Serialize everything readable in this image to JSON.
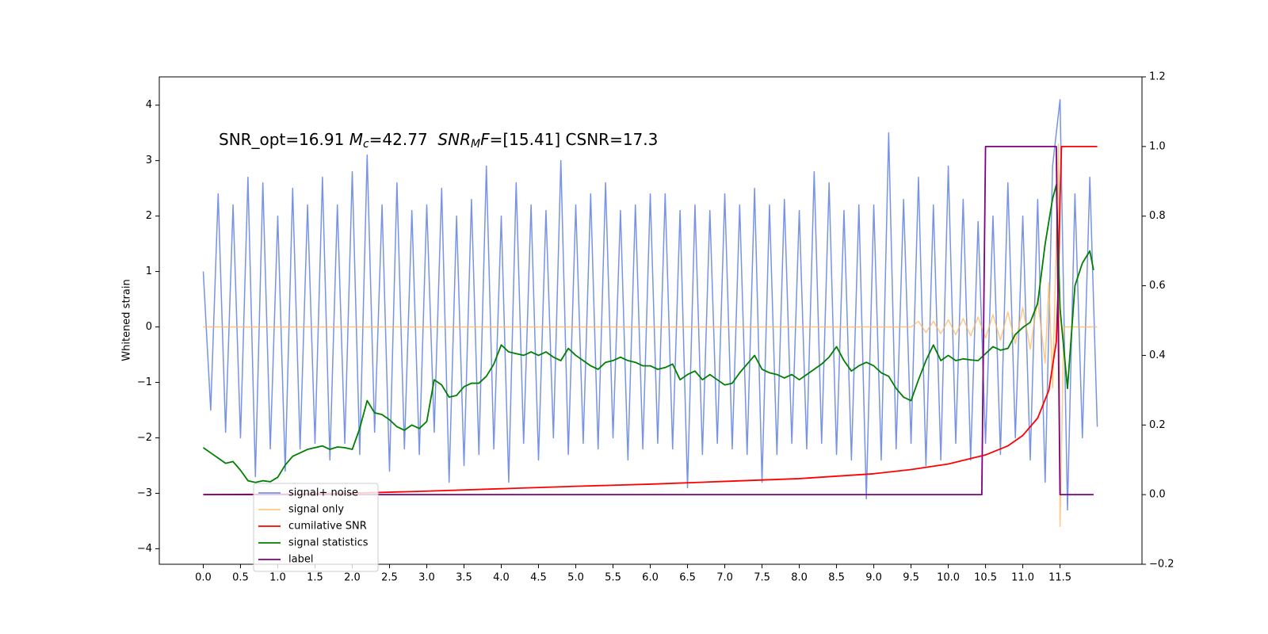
{
  "chart_data": {
    "type": "line",
    "annotation": [
      {
        "text": "SNR_opt=16.91 "
      },
      {
        "text": "M",
        "style": "italic"
      },
      {
        "text": "c",
        "style": "italic-sub"
      },
      {
        "text": "=42.77  "
      },
      {
        "text": "SNR",
        "style": "italic"
      },
      {
        "text": "M",
        "style": "italic-sub"
      },
      {
        "text": "F",
        "style": "italic"
      },
      {
        "text": "=[15.41] CSNR=17.3"
      }
    ],
    "ylabel": "Whitened strain",
    "xlim": [
      -0.59,
      12.6
    ],
    "ylim": [
      -4.28,
      4.51
    ],
    "y2lim": [
      -0.2,
      1.2
    ],
    "xticks": [
      {
        "value": 0,
        "label": "0.0"
      },
      0.5,
      {
        "value": 1,
        "label": "1.0"
      },
      1.5,
      {
        "value": 2,
        "label": "2.0"
      },
      2.5,
      {
        "value": 3,
        "label": "3.0"
      },
      3.5,
      {
        "value": 4,
        "label": "4.0"
      },
      4.5,
      {
        "value": 5,
        "label": "5.0"
      },
      5.5,
      {
        "value": 6,
        "label": "6.0"
      },
      6.5,
      {
        "value": 7,
        "label": "7.0"
      },
      7.5,
      {
        "value": 8,
        "label": "8.0"
      },
      8.5,
      {
        "value": 9,
        "label": "9.0"
      },
      9.5,
      {
        "value": 10,
        "label": "10.0"
      },
      10.5,
      {
        "value": 11,
        "label": "11.0"
      },
      11.5
    ],
    "yticks": [
      {
        "value": -4,
        "label": "−4"
      },
      {
        "value": -3,
        "label": "−3"
      },
      {
        "value": -2,
        "label": "−2"
      },
      {
        "value": -1,
        "label": "−1"
      },
      0,
      1,
      2,
      3,
      4
    ],
    "y2ticks": [
      {
        "value": -0.2,
        "label": "−0.2"
      },
      {
        "value": 0,
        "label": "0.0"
      },
      0.2,
      0.4,
      0.6,
      0.8,
      {
        "value": 1,
        "label": "1.0"
      },
      1.2
    ],
    "legend": "lower left",
    "series": [
      {
        "name": "signal+ noise",
        "color": "#7893e6",
        "x": [
          0,
          0.1,
          0.2,
          0.3,
          0.4,
          0.5,
          0.6,
          0.7,
          0.8,
          0.9,
          1.0,
          1.1,
          1.2,
          1.3,
          1.4,
          1.5,
          1.6,
          1.7,
          1.8,
          1.9,
          2.0,
          2.1,
          2.2,
          2.3,
          2.4,
          2.5,
          2.6,
          2.7,
          2.8,
          2.9,
          3.0,
          3.1,
          3.2,
          3.3,
          3.4,
          3.5,
          3.6,
          3.7,
          3.8,
          3.9,
          4.0,
          4.1,
          4.2,
          4.3,
          4.4,
          4.5,
          4.6,
          4.7,
          4.8,
          4.9,
          5.0,
          5.1,
          5.2,
          5.3,
          5.4,
          5.5,
          5.6,
          5.7,
          5.8,
          5.9,
          6.0,
          6.1,
          6.2,
          6.3,
          6.4,
          6.5,
          6.6,
          6.7,
          6.8,
          6.9,
          7.0,
          7.1,
          7.2,
          7.3,
          7.4,
          7.5,
          7.6,
          7.7,
          7.8,
          7.9,
          8.0,
          8.1,
          8.2,
          8.3,
          8.4,
          8.5,
          8.6,
          8.7,
          8.8,
          8.9,
          9.0,
          9.1,
          9.2,
          9.3,
          9.4,
          9.5,
          9.6,
          9.7,
          9.8,
          9.9,
          10.0,
          10.1,
          10.2,
          10.3,
          10.4,
          10.5,
          10.6,
          10.7,
          10.8,
          10.9,
          11.0,
          11.1,
          11.2,
          11.3,
          11.4,
          11.5,
          11.6,
          11.7,
          11.8,
          11.9,
          12.0
        ],
        "values": [
          1.0,
          -1.5,
          2.4,
          -1.9,
          2.2,
          -2.0,
          2.7,
          -2.7,
          2.6,
          -2.2,
          2.0,
          -2.6,
          2.5,
          -2.2,
          2.2,
          -2.1,
          2.7,
          -2.4,
          2.2,
          -2.1,
          2.8,
          -2.3,
          3.1,
          -1.9,
          2.2,
          -2.6,
          2.6,
          -2.2,
          2.1,
          -2.3,
          2.2,
          -1.9,
          2.5,
          -2.8,
          2.0,
          -2.5,
          2.3,
          -2.3,
          2.9,
          -2.2,
          2.0,
          -2.8,
          2.6,
          -2.1,
          2.2,
          -2.4,
          2.1,
          -2.0,
          3.0,
          -2.3,
          2.2,
          -2.1,
          2.4,
          -2.2,
          2.6,
          -2.0,
          2.1,
          -2.4,
          2.2,
          -2.2,
          2.4,
          -2.1,
          2.4,
          -2.2,
          2.1,
          -2.9,
          2.2,
          -2.3,
          2.1,
          -2.1,
          2.4,
          -2.2,
          2.2,
          -2.3,
          2.5,
          -2.8,
          2.2,
          -2.3,
          2.3,
          -2.1,
          2.1,
          -2.2,
          2.8,
          -2.1,
          2.6,
          -2.3,
          2.1,
          -2.4,
          2.2,
          -3.1,
          2.2,
          -2.4,
          3.5,
          -2.2,
          2.3,
          -2.1,
          2.7,
          -2.5,
          2.2,
          -2.4,
          2.9,
          -2.1,
          2.3,
          -2.4,
          1.9,
          -2.1,
          2.0,
          -2.3,
          2.6,
          -2.0,
          2.0,
          -2.4,
          2.3,
          -2.8,
          2.9,
          4.1,
          -3.3,
          2.4,
          -2.0,
          2.7,
          -1.8
        ]
      },
      {
        "name": "signal only",
        "color": "#ffb55a",
        "x": [
          0,
          9.5,
          9.6,
          9.7,
          9.8,
          9.9,
          10.0,
          10.1,
          10.2,
          10.3,
          10.4,
          10.5,
          10.6,
          10.7,
          10.8,
          10.9,
          11.0,
          11.1,
          11.2,
          11.3,
          11.35,
          11.4,
          11.45,
          11.48,
          11.5,
          11.55,
          12.0
        ],
        "values": [
          0,
          0,
          0.1,
          -0.1,
          0.1,
          -0.12,
          0.13,
          -0.14,
          0.15,
          -0.16,
          0.18,
          -0.2,
          0.22,
          -0.24,
          0.27,
          -0.3,
          0.35,
          -0.4,
          0.5,
          -0.65,
          0.8,
          -1.1,
          1.6,
          3.3,
          -3.6,
          0,
          0
        ]
      },
      {
        "name": "cumilative SNR",
        "color": "#ff0000",
        "axis": "y2",
        "x": [
          0,
          1,
          2,
          3,
          4,
          5,
          6,
          7,
          8,
          9,
          9.5,
          10,
          10.5,
          10.8,
          11,
          11.2,
          11.35,
          11.45,
          11.48,
          11.5,
          11.52,
          12.0
        ],
        "values": [
          0,
          0.001,
          0.004,
          0.01,
          0.017,
          0.024,
          0.03,
          0.038,
          0.046,
          0.06,
          0.072,
          0.088,
          0.114,
          0.14,
          0.17,
          0.22,
          0.3,
          0.44,
          0.63,
          0.85,
          1.0,
          1.0
        ]
      },
      {
        "name": "signal statistics",
        "color": "#007f00",
        "axis": "y2",
        "x": [
          0,
          0.1,
          0.2,
          0.3,
          0.4,
          0.5,
          0.6,
          0.7,
          0.8,
          0.9,
          1.0,
          1.1,
          1.2,
          1.3,
          1.4,
          1.5,
          1.6,
          1.7,
          1.8,
          1.9,
          2.0,
          2.1,
          2.2,
          2.3,
          2.4,
          2.5,
          2.6,
          2.7,
          2.8,
          2.9,
          3.0,
          3.1,
          3.2,
          3.3,
          3.4,
          3.5,
          3.6,
          3.7,
          3.8,
          3.9,
          4.0,
          4.1,
          4.2,
          4.3,
          4.4,
          4.5,
          4.6,
          4.7,
          4.8,
          4.9,
          5.0,
          5.1,
          5.2,
          5.3,
          5.4,
          5.5,
          5.6,
          5.7,
          5.8,
          5.9,
          6.0,
          6.1,
          6.2,
          6.3,
          6.4,
          6.5,
          6.6,
          6.7,
          6.8,
          6.9,
          7.0,
          7.1,
          7.2,
          7.3,
          7.4,
          7.5,
          7.6,
          7.7,
          7.8,
          7.9,
          8.0,
          8.1,
          8.2,
          8.3,
          8.4,
          8.5,
          8.6,
          8.7,
          8.8,
          8.9,
          9.0,
          9.1,
          9.2,
          9.3,
          9.4,
          9.5,
          9.6,
          9.7,
          9.8,
          9.9,
          10.0,
          10.1,
          10.2,
          10.3,
          10.4,
          10.5,
          10.6,
          10.7,
          10.8,
          10.9,
          11.0,
          11.1,
          11.2,
          11.3,
          11.4,
          11.45,
          11.5,
          11.6,
          11.7,
          11.8,
          11.9,
          11.95
        ],
        "values": [
          0.135,
          0.12,
          0.105,
          0.09,
          0.095,
          0.07,
          0.04,
          0.035,
          0.04,
          0.037,
          0.05,
          0.085,
          0.11,
          0.12,
          0.13,
          0.135,
          0.14,
          0.13,
          0.137,
          0.135,
          0.13,
          0.19,
          0.27,
          0.235,
          0.23,
          0.215,
          0.195,
          0.185,
          0.2,
          0.19,
          0.21,
          0.33,
          0.315,
          0.28,
          0.285,
          0.31,
          0.32,
          0.32,
          0.34,
          0.375,
          0.43,
          0.41,
          0.405,
          0.4,
          0.41,
          0.4,
          0.41,
          0.395,
          0.385,
          0.42,
          0.4,
          0.385,
          0.37,
          0.36,
          0.38,
          0.385,
          0.395,
          0.385,
          0.38,
          0.37,
          0.37,
          0.36,
          0.365,
          0.375,
          0.33,
          0.345,
          0.355,
          0.33,
          0.345,
          0.33,
          0.315,
          0.32,
          0.35,
          0.375,
          0.4,
          0.36,
          0.35,
          0.345,
          0.335,
          0.345,
          0.33,
          0.345,
          0.36,
          0.375,
          0.395,
          0.425,
          0.385,
          0.355,
          0.37,
          0.38,
          0.37,
          0.35,
          0.34,
          0.305,
          0.28,
          0.27,
          0.33,
          0.385,
          0.43,
          0.385,
          0.4,
          0.385,
          0.39,
          0.387,
          0.385,
          0.405,
          0.425,
          0.415,
          0.42,
          0.46,
          0.48,
          0.495,
          0.55,
          0.72,
          0.85,
          0.89,
          0.535,
          0.305,
          0.6,
          0.665,
          0.7,
          0.645
        ]
      },
      {
        "name": "label",
        "color": "#800080",
        "axis": "y2",
        "x": [
          0,
          10.45,
          10.5,
          11.45,
          11.5,
          11.95
        ],
        "values": [
          0,
          0,
          1,
          1,
          0,
          0
        ]
      }
    ]
  }
}
